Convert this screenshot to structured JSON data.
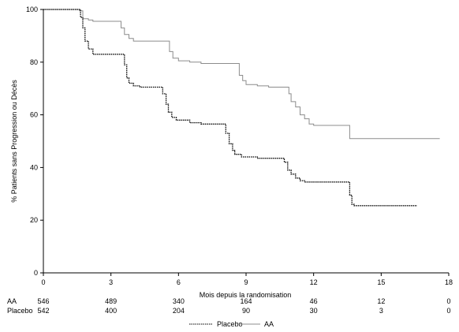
{
  "chart_data": {
    "type": "line",
    "step": true,
    "xlabel": "Mois depuis la randomisation",
    "ylabel": "% Patients sans Progression ou Décès",
    "xlim": [
      0,
      18
    ],
    "ylim": [
      0,
      100
    ],
    "x_ticks": [
      0,
      3,
      6,
      9,
      12,
      15,
      18
    ],
    "y_ticks": [
      0,
      20,
      40,
      60,
      80,
      100
    ],
    "grid": false,
    "legend_position": "bottom-center",
    "series": [
      {
        "name": "AA",
        "color": "#8c8c8c",
        "style": "solid",
        "points": [
          [
            0,
            100
          ],
          [
            1.5,
            100
          ],
          [
            1.6,
            99.5
          ],
          [
            1.75,
            96.5
          ],
          [
            2,
            96
          ],
          [
            2.2,
            95.5
          ],
          [
            3.3,
            95.5
          ],
          [
            3.45,
            93
          ],
          [
            3.6,
            90.5
          ],
          [
            3.8,
            89
          ],
          [
            4,
            88
          ],
          [
            5.5,
            88
          ],
          [
            5.6,
            84
          ],
          [
            5.75,
            81.5
          ],
          [
            6,
            80.5
          ],
          [
            6.5,
            80
          ],
          [
            7,
            79.5
          ],
          [
            8.6,
            79.5
          ],
          [
            8.7,
            75
          ],
          [
            8.85,
            73
          ],
          [
            9,
            71.5
          ],
          [
            9.5,
            71
          ],
          [
            10,
            70.5
          ],
          [
            10.8,
            70.5
          ],
          [
            10.9,
            68
          ],
          [
            11,
            65
          ],
          [
            11.2,
            63
          ],
          [
            11.4,
            60
          ],
          [
            11.6,
            58.5
          ],
          [
            11.8,
            56.5
          ],
          [
            12,
            56
          ],
          [
            13.5,
            56
          ],
          [
            13.6,
            51
          ],
          [
            17.6,
            51
          ]
        ]
      },
      {
        "name": "Placebo",
        "color": "#000000",
        "style": "dotted",
        "points": [
          [
            0,
            100
          ],
          [
            1.6,
            100
          ],
          [
            1.65,
            97
          ],
          [
            1.75,
            93
          ],
          [
            1.85,
            88
          ],
          [
            2,
            85
          ],
          [
            2.2,
            83
          ],
          [
            3.5,
            83
          ],
          [
            3.6,
            79
          ],
          [
            3.7,
            74
          ],
          [
            3.8,
            72
          ],
          [
            4,
            71
          ],
          [
            4.3,
            70.5
          ],
          [
            5.1,
            70.5
          ],
          [
            5.3,
            68
          ],
          [
            5.45,
            64
          ],
          [
            5.55,
            61
          ],
          [
            5.7,
            59
          ],
          [
            5.9,
            58
          ],
          [
            6.5,
            57
          ],
          [
            7,
            56.5
          ],
          [
            8,
            56.5
          ],
          [
            8.1,
            53
          ],
          [
            8.25,
            49
          ],
          [
            8.4,
            46.5
          ],
          [
            8.5,
            45
          ],
          [
            8.8,
            44
          ],
          [
            9.5,
            43.5
          ],
          [
            10.5,
            43.5
          ],
          [
            10.7,
            42
          ],
          [
            10.85,
            39
          ],
          [
            11,
            37.5
          ],
          [
            11.2,
            36
          ],
          [
            11.4,
            35
          ],
          [
            11.6,
            34.5
          ],
          [
            13.5,
            34.5
          ],
          [
            13.6,
            29.5
          ],
          [
            13.7,
            26
          ],
          [
            13.8,
            25.5
          ],
          [
            16.6,
            25.5
          ]
        ]
      }
    ],
    "risk_table": {
      "timepoints": [
        0,
        3,
        6,
        9,
        12,
        15,
        18
      ],
      "rows": [
        {
          "label": "AA",
          "values": [
            "546",
            "489",
            "340",
            "164",
            "46",
            "12",
            "0"
          ]
        },
        {
          "label": "Placebo",
          "values": [
            "542",
            "400",
            "204",
            "90",
            "30",
            "3",
            "0"
          ]
        }
      ]
    }
  }
}
